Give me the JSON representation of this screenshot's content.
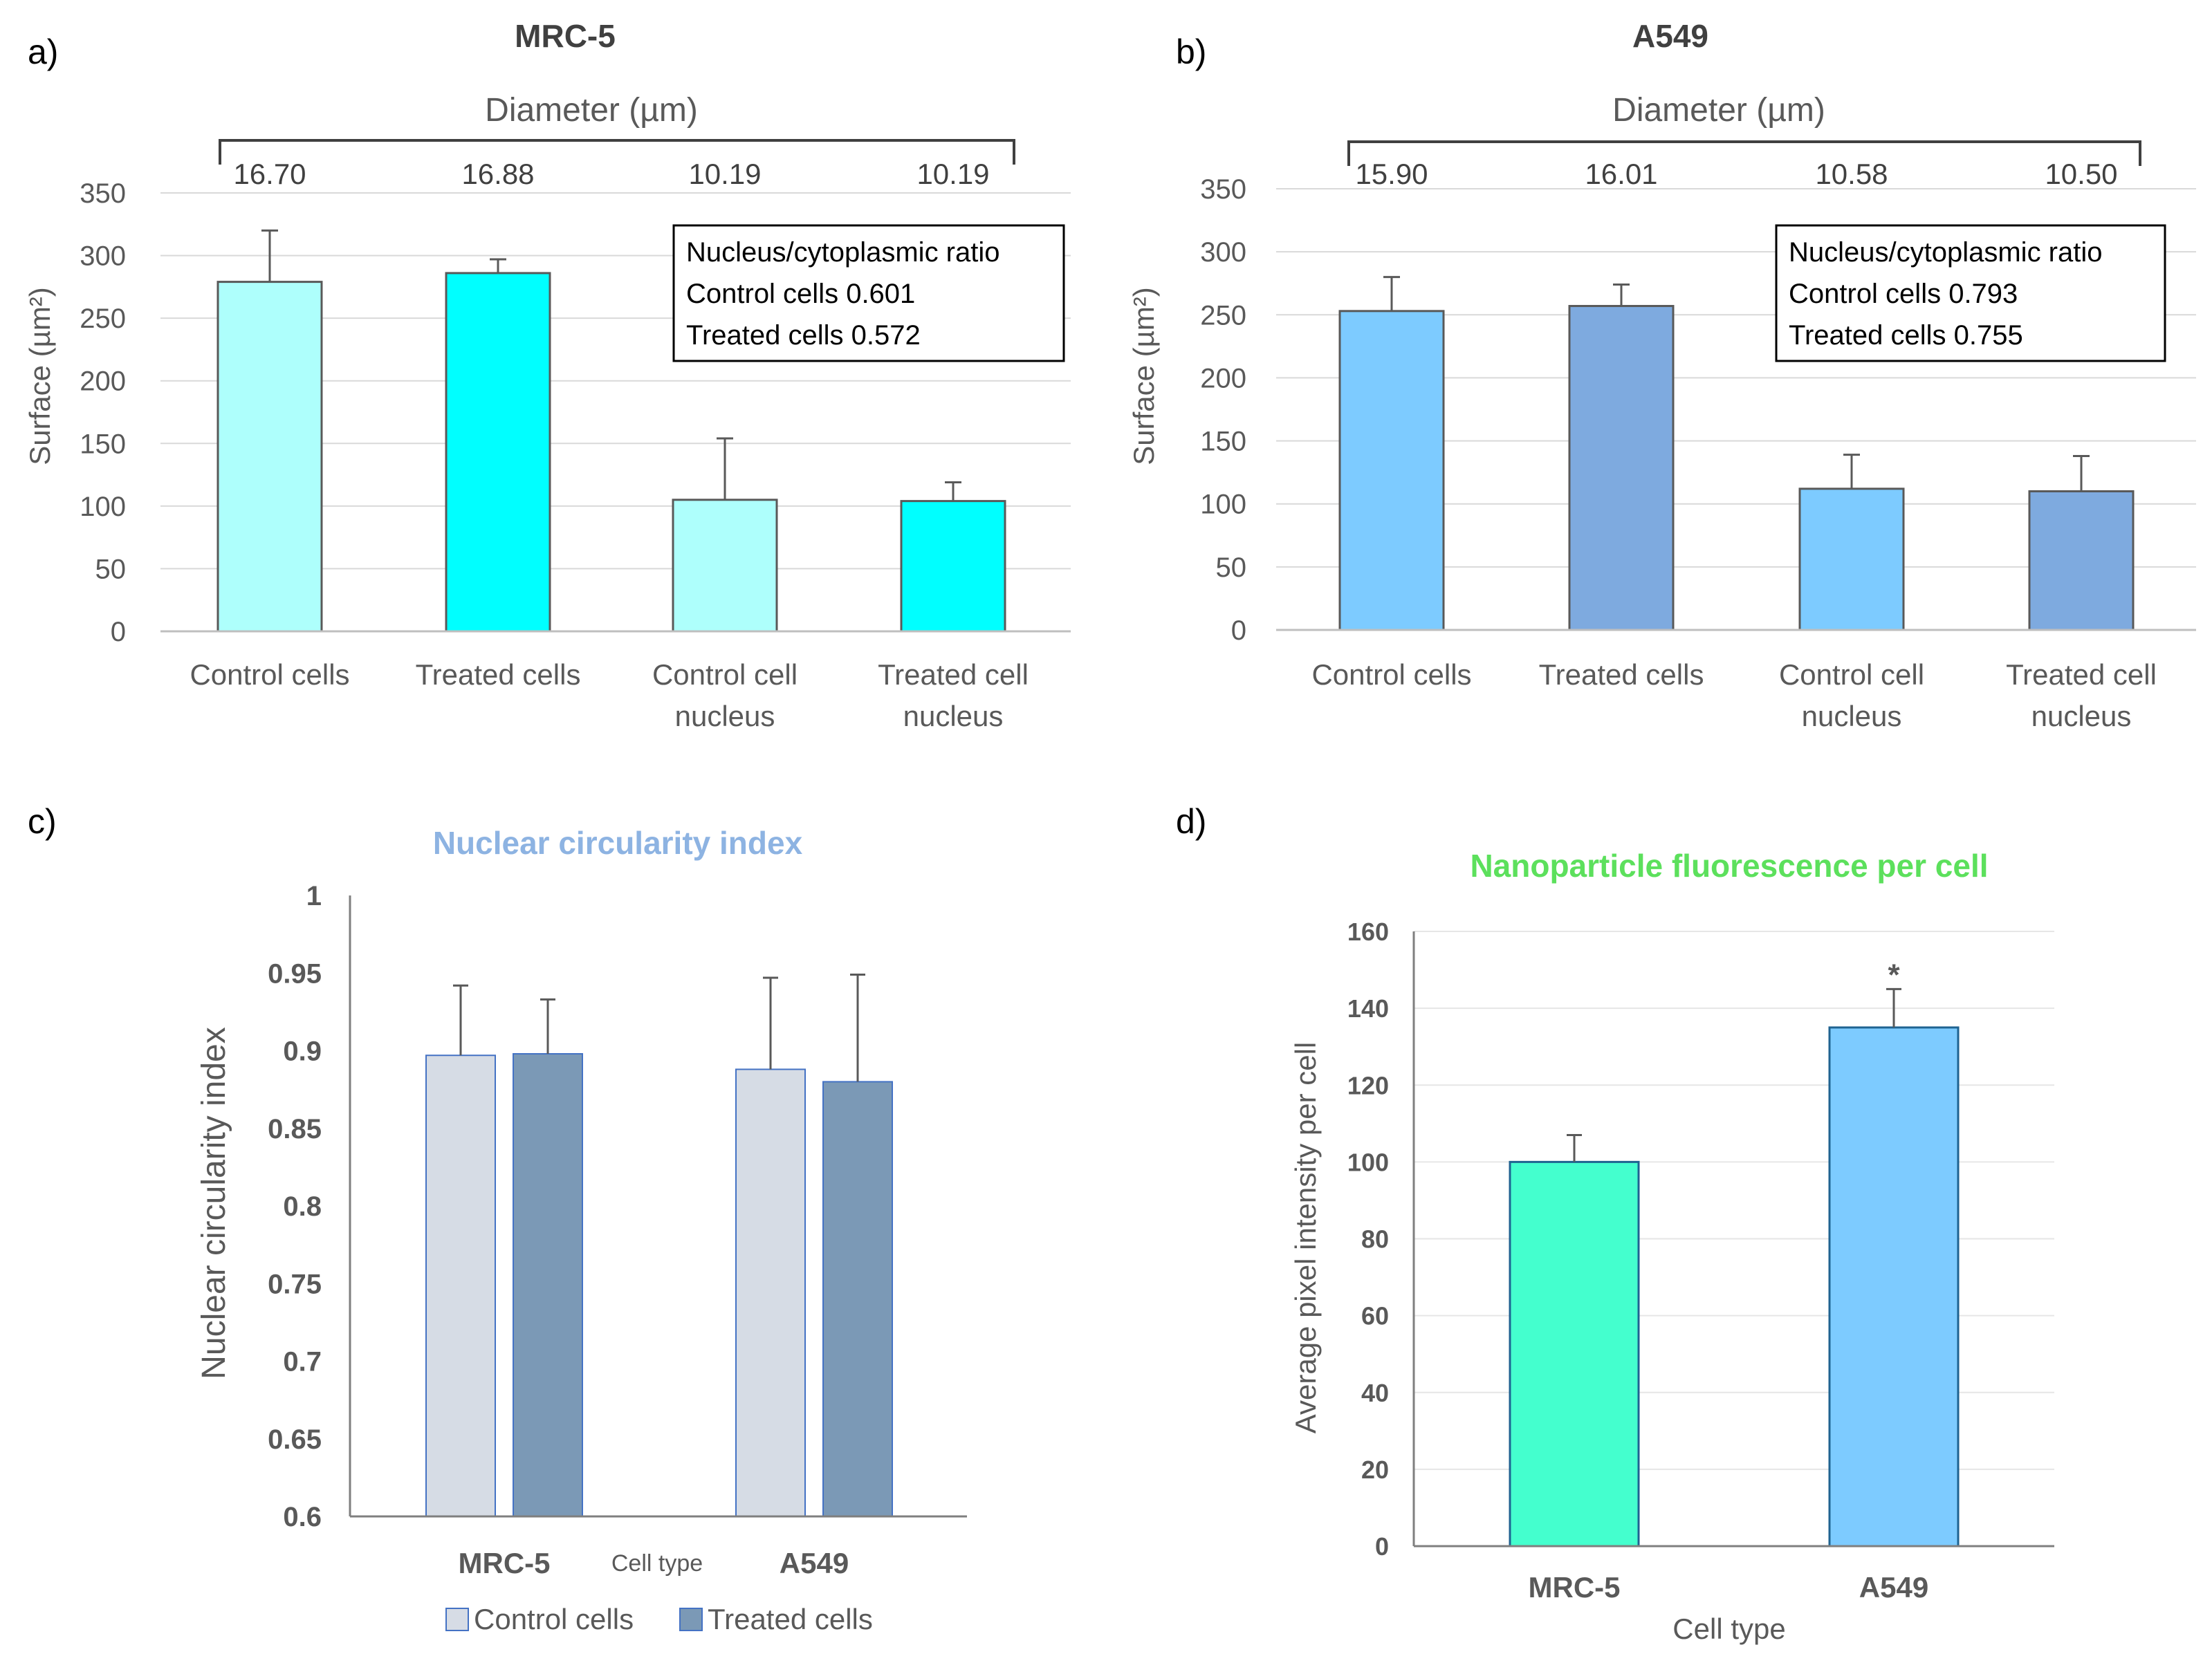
{
  "colors": {
    "mrc5_control": "#aefffc",
    "mrc5_treated": "#00ffff",
    "a549_control": "#7dcbff",
    "a549_treated": "#7eaadf",
    "circ_control": "#d6dce5",
    "circ_treated": "#7b99b6",
    "fluo_mrc5": "#44ffce",
    "fluo_a549": "#7dcbff",
    "title_c": "#8db3e2",
    "title_d": "#5ce05c"
  },
  "chart_data": [
    {
      "id": "a",
      "panel_label": "a)",
      "type": "bar",
      "title": "MRC-5",
      "diameter_label": "Diameter (µm)",
      "diameters": [
        "16.70",
        "16.88",
        "10.19",
        "10.19"
      ],
      "ylabel": "Surface (µm²)",
      "xlabel": "",
      "ylim": [
        0,
        350
      ],
      "yticks": [
        0,
        50,
        100,
        150,
        200,
        250,
        300,
        350
      ],
      "categories": [
        [
          "Control cells"
        ],
        [
          "Treated cells"
        ],
        [
          "Control cell",
          "nucleus"
        ],
        [
          "Treated cell",
          "nucleus"
        ]
      ],
      "values": [
        279,
        286,
        105,
        104
      ],
      "errors": [
        41,
        11,
        49,
        15
      ],
      "bar_colors": [
        "mrc5_control",
        "mrc5_treated",
        "mrc5_control",
        "mrc5_treated"
      ],
      "ratio_box": [
        "Nucleus/cytoplasmic ratio",
        "Control cells 0.601",
        "Treated cells 0.572"
      ]
    },
    {
      "id": "b",
      "panel_label": "b)",
      "type": "bar",
      "title": "A549",
      "diameter_label": "Diameter (µm)",
      "diameters": [
        "15.90",
        "16.01",
        "10.58",
        "10.50"
      ],
      "ylabel": "Surface (µm²)",
      "xlabel": "",
      "ylim": [
        0,
        350
      ],
      "yticks": [
        0,
        50,
        100,
        150,
        200,
        250,
        300,
        350
      ],
      "categories": [
        [
          "Control cells"
        ],
        [
          "Treated cells"
        ],
        [
          "Control cell",
          "nucleus"
        ],
        [
          "Treated cell",
          "nucleus"
        ]
      ],
      "values": [
        253,
        257,
        112,
        110
      ],
      "errors": [
        27,
        17,
        27,
        28
      ],
      "bar_colors": [
        "a549_control",
        "a549_treated",
        "a549_control",
        "a549_treated"
      ],
      "ratio_box": [
        "Nucleus/cytoplasmic ratio",
        "Control cells 0.793",
        "Treated cells 0.755"
      ]
    },
    {
      "id": "c",
      "panel_label": "c)",
      "type": "bar",
      "title": "Nuclear circularity index",
      "ylabel": "Nuclear circularity index",
      "xlabel": "Cell type",
      "ylim": [
        0.6,
        1
      ],
      "yticks": [
        "0.6",
        "0.65",
        "0.7",
        "0.75",
        "0.8",
        "0.85",
        "0.9",
        "0.95",
        "1"
      ],
      "categories": [
        "MRC-5",
        "A549"
      ],
      "series": [
        {
          "name": "Control cells",
          "color": "circ_control",
          "values": [
            0.897,
            0.888
          ],
          "errors": [
            0.045,
            0.059
          ]
        },
        {
          "name": "Treated cells",
          "color": "circ_treated",
          "values": [
            0.898,
            0.88
          ],
          "errors": [
            0.035,
            0.069
          ]
        }
      ],
      "legend": [
        "Control cells",
        "Treated cells"
      ]
    },
    {
      "id": "d",
      "panel_label": "d)",
      "type": "bar",
      "title": "Nanoparticle fluorescence per cell",
      "ylabel": "Average pixel intensity per cell",
      "xlabel": "Cell type",
      "ylim": [
        0,
        160
      ],
      "yticks": [
        0,
        20,
        40,
        60,
        80,
        100,
        120,
        140,
        160
      ],
      "categories": [
        "MRC-5",
        "A549"
      ],
      "values": [
        100,
        135
      ],
      "errors": [
        7,
        10
      ],
      "bar_colors": [
        "fluo_mrc5",
        "fluo_a549"
      ],
      "annotations": [
        "",
        "*"
      ]
    }
  ]
}
